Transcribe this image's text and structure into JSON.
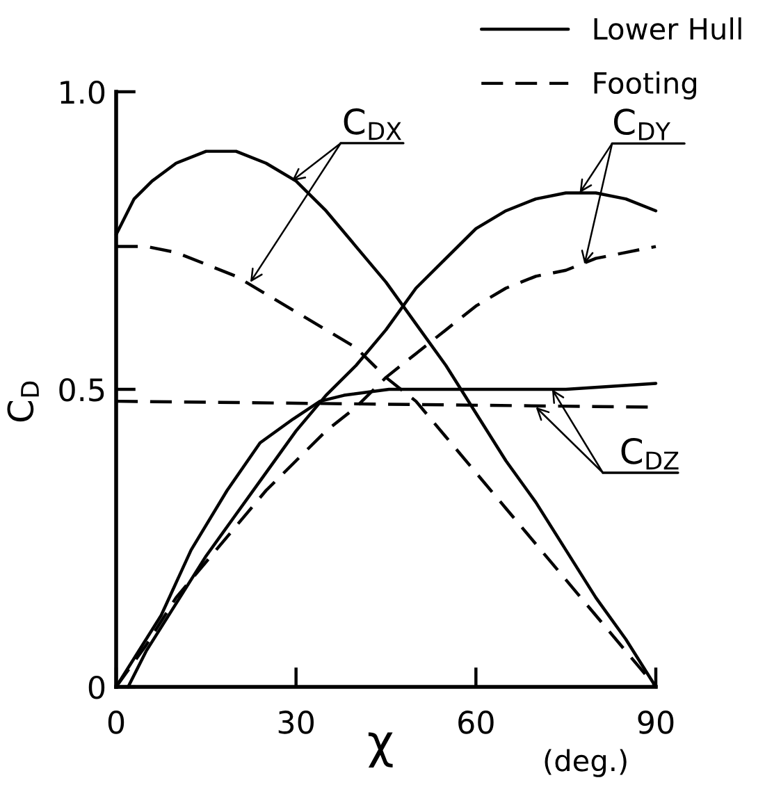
{
  "chart_data": {
    "type": "line",
    "xlabel": "χ",
    "ylabel": "C$_{D}$",
    "xlim": [
      0,
      90
    ],
    "ylim": [
      0,
      1
    ],
    "xticks": [
      0,
      30,
      60,
      90
    ],
    "yticks": [
      0,
      0.5,
      {
        "value": 1,
        "label": "1.0"
      }
    ],
    "grid": false,
    "legend": "top right",
    "series": [
      {
        "name": "Lower Hull",
        "color": "#000000",
        "line_style": "solid",
        "x": [
          0,
          3,
          6,
          10,
          15,
          20,
          25,
          30,
          35,
          40,
          45,
          50,
          55,
          60,
          65,
          70,
          75,
          80,
          85,
          90
        ],
        "values": [
          0.76,
          0.82,
          0.85,
          0.88,
          0.9,
          0.9,
          0.88,
          0.85,
          0.8,
          0.74,
          0.68,
          0.61,
          0.54,
          0.46,
          0.38,
          0.31,
          0.23,
          0.15,
          0.08,
          0
        ]
      },
      {
        "name": "Footing",
        "color": "#000000",
        "line_style": "dashed",
        "x": [
          0,
          5,
          10,
          15,
          20,
          25,
          30,
          35,
          40,
          45,
          50,
          55,
          60,
          65,
          70,
          75,
          80,
          85,
          90
        ],
        "values": [
          0.74,
          0.74,
          0.73,
          0.71,
          0.69,
          0.66,
          0.63,
          0.6,
          0.57,
          0.52,
          0.48,
          0.42,
          0.36,
          0.3,
          0.24,
          0.18,
          0.12,
          0.06,
          0
        ]
      },
      {
        "color": "#000000",
        "line_style": "solid",
        "x": [
          2,
          5,
          10,
          15,
          20,
          25,
          30,
          35,
          40,
          45,
          50,
          55,
          60,
          65,
          70,
          75,
          80,
          85,
          90
        ],
        "values": [
          0,
          0.06,
          0.14,
          0.22,
          0.29,
          0.36,
          0.43,
          0.49,
          0.54,
          0.6,
          0.67,
          0.72,
          0.77,
          0.8,
          0.82,
          0.83,
          0.83,
          0.82,
          0.8
        ]
      },
      {
        "color": "#000000",
        "line_style": "dashed",
        "x": [
          0,
          5,
          10,
          15,
          20,
          25,
          30,
          35,
          40,
          45,
          50,
          55,
          60,
          65,
          70,
          75,
          80,
          85,
          90
        ],
        "values": [
          0,
          0.07,
          0.15,
          0.21,
          0.27,
          0.33,
          0.38,
          0.43,
          0.47,
          0.52,
          0.56,
          0.6,
          0.64,
          0.67,
          0.69,
          0.7,
          0.72,
          0.73,
          0.74
        ]
      },
      {
        "color": "#000000",
        "line_style": "solid",
        "x": [
          0,
          7.5,
          12.5,
          18.5,
          24,
          29.5,
          34,
          38,
          45.5,
          60,
          75,
          90
        ],
        "values": [
          0,
          0.12,
          0.23,
          0.33,
          0.41,
          0.45,
          0.48,
          0.49,
          0.5,
          0.5,
          0.5,
          0.51
        ]
      },
      {
        "color": "#000000",
        "line_style": "dashed",
        "x": [
          0,
          90
        ],
        "values": [
          0.48,
          0.47
        ]
      }
    ],
    "annotations": [
      {
        "text": "C$_{DX}$",
        "x": 29.3,
        "y": 0.85
      },
      {
        "text": "C$_{DY}$",
        "x": 77.3,
        "y": 0.83
      },
      {
        "text": "C$_{DZ}$",
        "x": 72.7,
        "y": 0.5
      },
      "(deg.)"
    ]
  }
}
